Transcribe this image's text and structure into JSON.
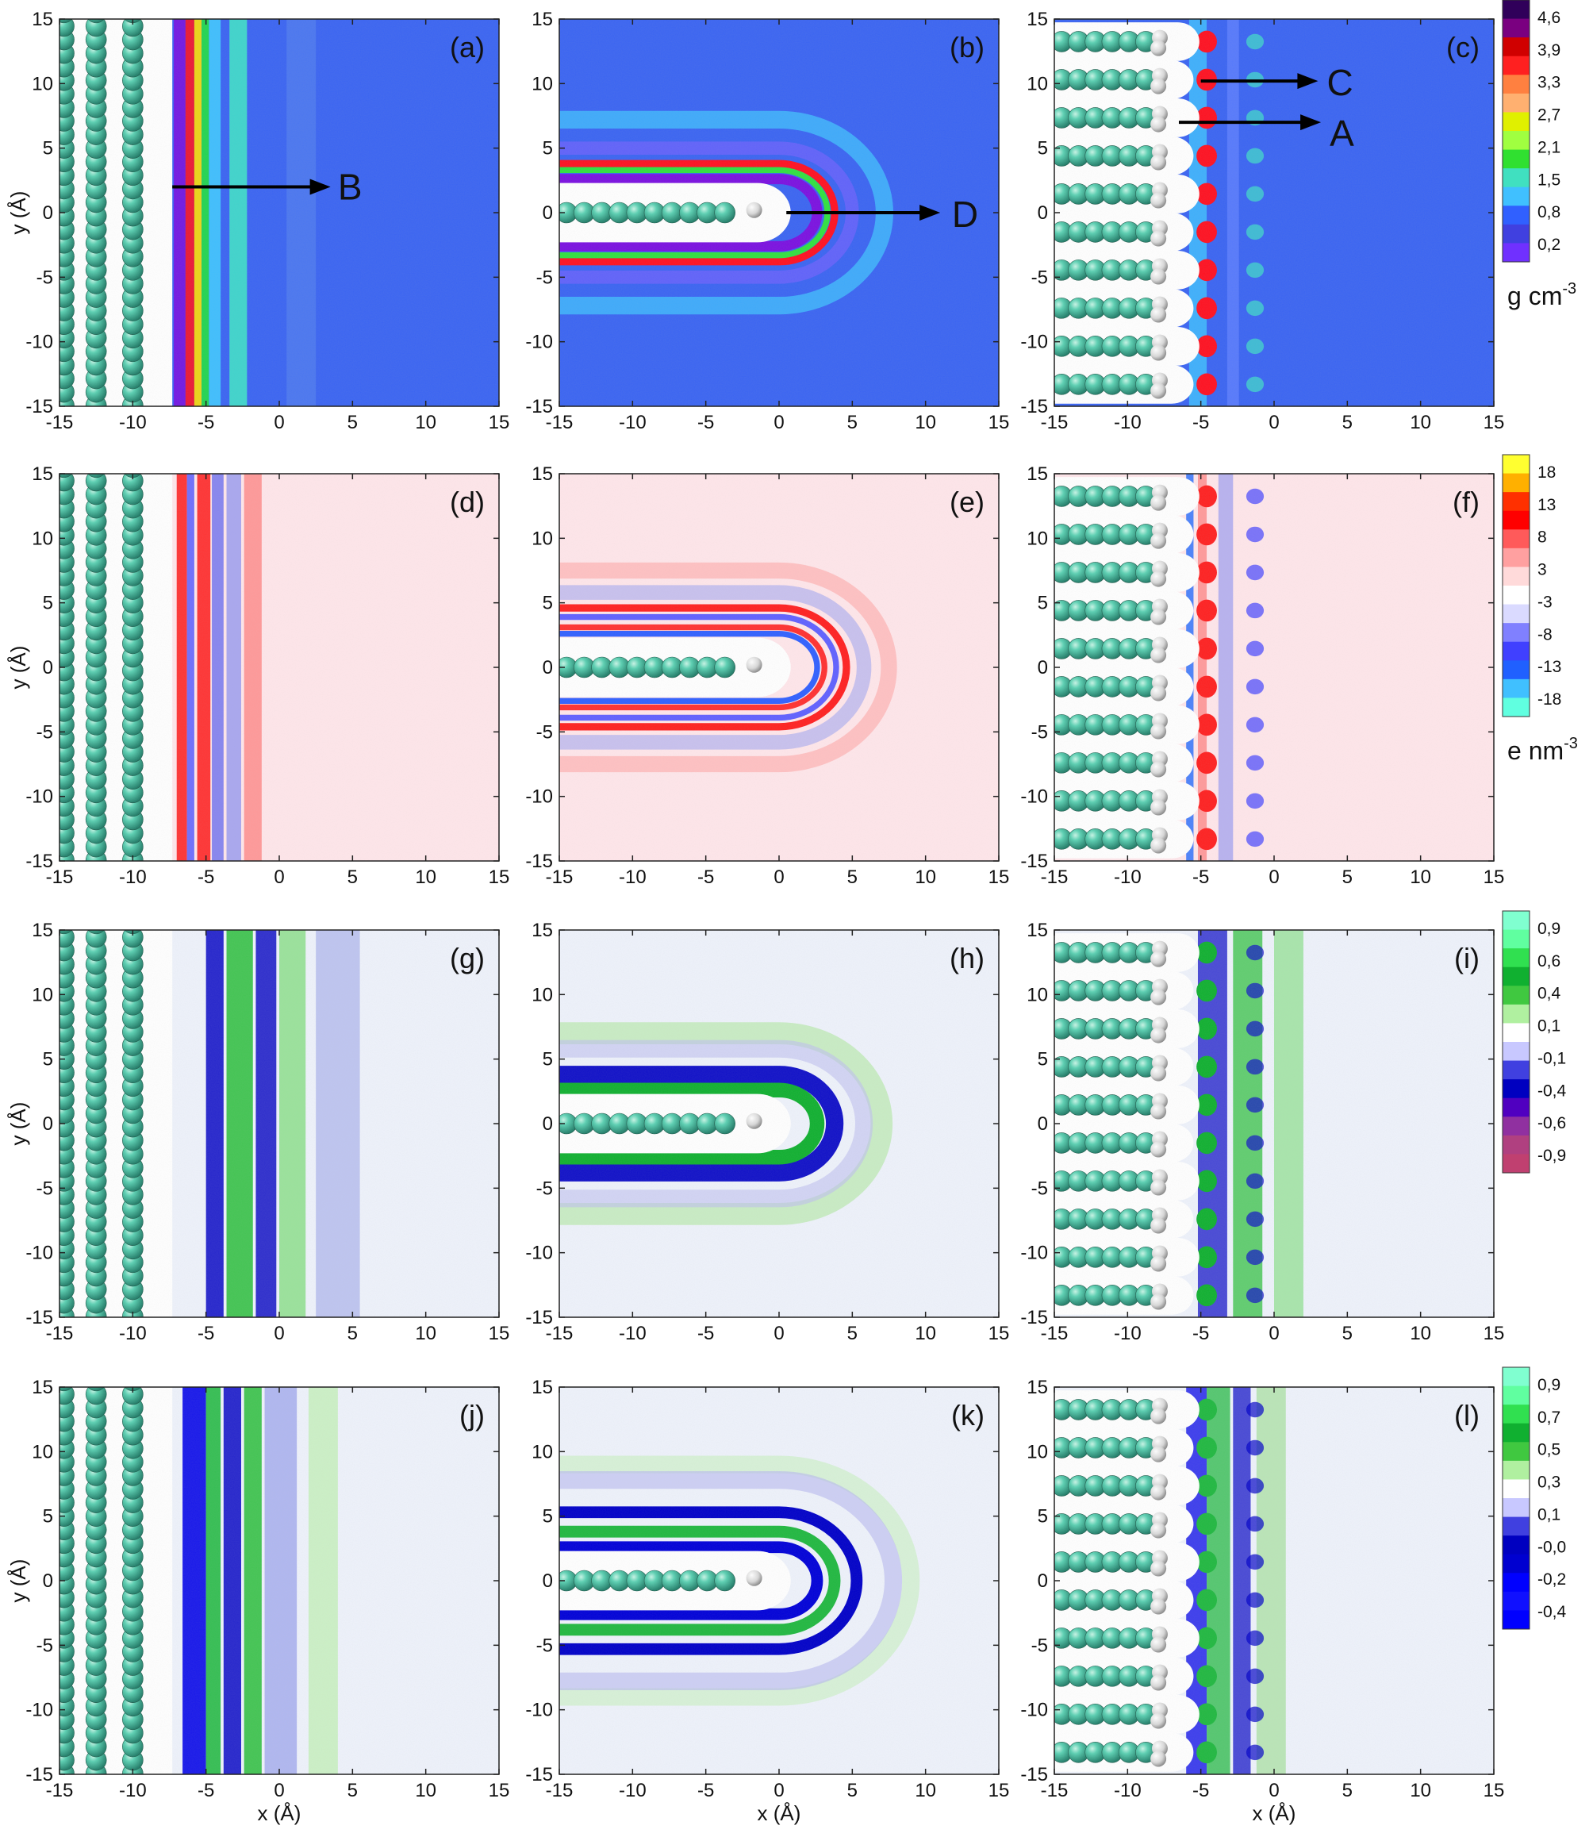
{
  "chart_data": {
    "type": "heatmap",
    "layout": {
      "rows": 4,
      "columns": 3
    },
    "x_range": [
      -15,
      15
    ],
    "y_range": [
      -15,
      15
    ],
    "x_ticks": [
      -15,
      -10,
      -5,
      0,
      5,
      10,
      15
    ],
    "y_ticks": [
      -15,
      -10,
      -5,
      0,
      5,
      10,
      15
    ],
    "xlabel": "x (Å)",
    "ylabel": "y (Å)",
    "panels": [
      {
        "label": "(a)",
        "geometry": "flat",
        "field": "density",
        "labels": [
          "B"
        ]
      },
      {
        "label": "(b)",
        "geometry": "tip",
        "field": "density",
        "labels": [
          "D"
        ]
      },
      {
        "label": "(c)",
        "geometry": "comb",
        "field": "density",
        "labels": [
          "C",
          "A"
        ]
      },
      {
        "label": "(d)",
        "geometry": "flat",
        "field": "charge"
      },
      {
        "label": "(e)",
        "geometry": "tip",
        "field": "charge"
      },
      {
        "label": "(f)",
        "geometry": "comb",
        "field": "charge"
      },
      {
        "label": "(g)",
        "geometry": "flat",
        "field": "orient1"
      },
      {
        "label": "(h)",
        "geometry": "tip",
        "field": "orient1"
      },
      {
        "label": "(i)",
        "geometry": "comb",
        "field": "orient1"
      },
      {
        "label": "(j)",
        "geometry": "flat",
        "field": "orient2"
      },
      {
        "label": "(k)",
        "geometry": "tip",
        "field": "orient2"
      },
      {
        "label": "(l)",
        "geometry": "comb",
        "field": "orient2"
      }
    ],
    "colorbars": [
      {
        "row": 0,
        "unit_main": "g cm",
        "unit_sup": "-3",
        "ticks": [
          "4,6",
          "3,9",
          "3,3",
          "2,7",
          "2,1",
          "1,5",
          "0,8",
          "0,2"
        ],
        "colors": [
          "#30005a",
          "#7a0080",
          "#d00000",
          "#ff2020",
          "#ff8040",
          "#ffb070",
          "#e0f000",
          "#a0ff40",
          "#30e030",
          "#40e0c0",
          "#40c0ff",
          "#3060ff",
          "#4040e0",
          "#7030ff"
        ]
      },
      {
        "row": 1,
        "unit_main": "e nm",
        "unit_sup": "-3",
        "ticks": [
          "18",
          "13",
          "8",
          "3",
          "-3",
          "-8",
          "-13",
          "-18"
        ],
        "colors": [
          "#ffff30",
          "#ffb000",
          "#ff3000",
          "#ff0000",
          "#ff5a5a",
          "#ffa0a0",
          "#ffdada",
          "#ffffff",
          "#dadaff",
          "#8080ff",
          "#4040ff",
          "#2060ff",
          "#40c0ff",
          "#60ffe0"
        ]
      },
      {
        "row": 2,
        "unit_main": "",
        "unit_sup": "",
        "ticks": [
          "0,9",
          "0,6",
          "0,4",
          "0,1",
          "-0,1",
          "-0,4",
          "-0,6",
          "-0,9"
        ],
        "colors": [
          "#80ffd0",
          "#60ffa0",
          "#30e050",
          "#10b030",
          "#40c840",
          "#b0f0a0",
          "#ffffff",
          "#c8c8ff",
          "#4040e0",
          "#0000c0",
          "#5000c0",
          "#9030a0",
          "#b04080",
          "#c04070"
        ]
      },
      {
        "row": 3,
        "unit_main": "",
        "unit_sup": "",
        "ticks": [
          "0,9",
          "0,7",
          "0,5",
          "0,3",
          "0,1",
          "-0,0",
          "-0,2",
          "-0,4"
        ],
        "colors": [
          "#80ffd0",
          "#60ffa0",
          "#30e050",
          "#10b030",
          "#40c840",
          "#b0f0a0",
          "#ffffff",
          "#c8c8ff",
          "#4040e0",
          "#0000c0",
          "#0000d0",
          "#0000ff",
          "#1010ff",
          "#0000ff"
        ]
      }
    ]
  }
}
